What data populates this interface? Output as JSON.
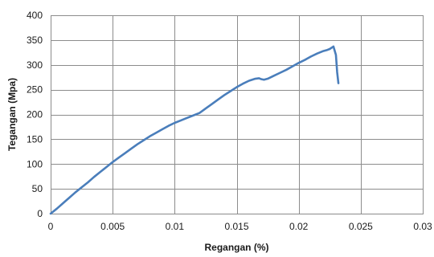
{
  "chart_data": {
    "type": "line",
    "title": "",
    "xlabel": "Regangan  (%)",
    "ylabel": "Tegangan (Mpa)",
    "xlim": [
      0,
      0.03
    ],
    "ylim": [
      0,
      400
    ],
    "x_ticks": [
      0,
      0.005,
      0.01,
      0.015,
      0.02,
      0.025,
      0.03
    ],
    "x_tick_labels": [
      "0",
      "0.005",
      "0.01",
      "0.015",
      "0.02",
      "0.025",
      "0.03"
    ],
    "y_ticks": [
      0,
      50,
      100,
      150,
      200,
      250,
      300,
      350,
      400
    ],
    "y_tick_labels": [
      "0",
      "50",
      "100",
      "150",
      "200",
      "250",
      "300",
      "350",
      "400"
    ],
    "grid": true,
    "legend": false,
    "series_color": "#4a7ebb",
    "series": [
      {
        "x": [
          0,
          0.0005,
          0.001,
          0.0015,
          0.002,
          0.0025,
          0.003,
          0.0035,
          0.004,
          0.0045,
          0.005,
          0.0055,
          0.006,
          0.0065,
          0.007,
          0.0075,
          0.008,
          0.0085,
          0.009,
          0.0095,
          0.01,
          0.0105,
          0.011,
          0.0115,
          0.012,
          0.0125,
          0.013,
          0.0135,
          0.014,
          0.0145,
          0.015,
          0.0155,
          0.016,
          0.0165,
          0.0168,
          0.017,
          0.0172,
          0.0175,
          0.018,
          0.0185,
          0.019,
          0.0195,
          0.02,
          0.0205,
          0.021,
          0.0215,
          0.022,
          0.0223,
          0.0225,
          0.0228,
          0.023,
          0.0231,
          0.0232
        ],
        "y": [
          0,
          10,
          21,
          32,
          43,
          53,
          63,
          74,
          84,
          94,
          104,
          113,
          122,
          131,
          140,
          148,
          156,
          163,
          170,
          177,
          183,
          188,
          193,
          198,
          203,
          212,
          221,
          230,
          239,
          247,
          255,
          262,
          268,
          272,
          273,
          271,
          270,
          272,
          278,
          284,
          290,
          297,
          304,
          310,
          317,
          323,
          328,
          330,
          332,
          337,
          320,
          285,
          263
        ]
      }
    ]
  }
}
